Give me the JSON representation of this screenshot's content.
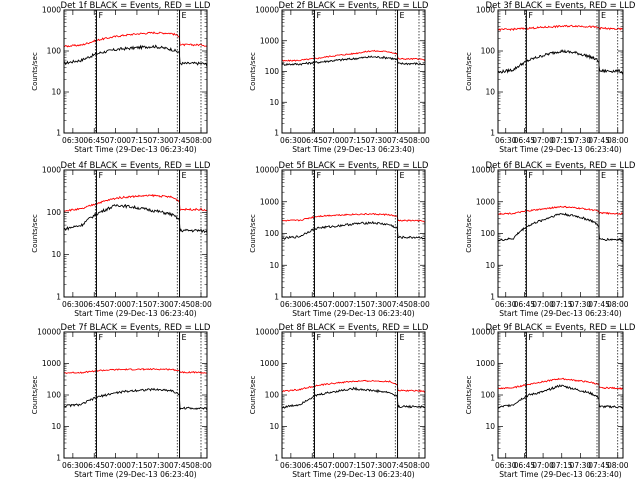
{
  "chart_data": [
    {
      "type": "line",
      "title": "Det 1f BLACK = Events, RED = LLD",
      "xlabel": "Start Time (29-Dec-13 06:23:40)",
      "ylabel": "Counts/sec",
      "yscale": "log",
      "ylim": [
        1,
        1000
      ],
      "y_ticks": [
        "1",
        "10",
        "100",
        "1000"
      ],
      "x_ticks": [
        "06:30",
        "06:45",
        "07:00",
        "07:15",
        "07:30",
        "07:45",
        "08:00"
      ],
      "markers": [
        "F",
        "E"
      ],
      "series": [
        {
          "color": "#000000",
          "levels": [
            50,
            60,
            90,
            110,
            120,
            130,
            110,
            70,
            45
          ]
        },
        {
          "color": "#ff0000",
          "levels": [
            130,
            140,
            190,
            230,
            260,
            280,
            270,
            180,
            130
          ]
        }
      ]
    },
    {
      "type": "line",
      "title": "Det 2f BLACK = Events, RED = LLD",
      "xlabel": "Start Time (29-Dec-13 06:23:40)",
      "ylabel": "Counts/sec",
      "yscale": "log",
      "ylim": [
        1,
        10000
      ],
      "y_ticks": [
        "1",
        "10",
        "100",
        "1000",
        "10000"
      ],
      "x_ticks": [
        "06:30",
        "06:45",
        "07:00",
        "07:15",
        "07:30",
        "07:45",
        "08:00"
      ],
      "markers": [
        "F",
        "E"
      ],
      "series": [
        {
          "color": "#000000",
          "levels": [
            170,
            175,
            200,
            230,
            260,
            300,
            280,
            190,
            170
          ]
        },
        {
          "color": "#ff0000",
          "levels": [
            220,
            230,
            270,
            330,
            380,
            470,
            440,
            280,
            240
          ]
        }
      ]
    },
    {
      "type": "line",
      "title": "Det 3f BLACK = Events, RED = LLD",
      "xlabel": "Start Time (29-Dec-13 06:23:40)",
      "ylabel": "Counts/sec",
      "yscale": "log",
      "ylim": [
        1,
        1000
      ],
      "y_ticks": [
        "1",
        "10",
        "100",
        "1000"
      ],
      "x_ticks": [
        "06:30",
        "06:45",
        "07:00",
        "07:15",
        "07:30",
        "07:45",
        "08:00"
      ],
      "markers": [
        "F",
        "E"
      ],
      "series": [
        {
          "color": "#000000",
          "levels": [
            30,
            35,
            60,
            80,
            100,
            90,
            70,
            40,
            30
          ]
        },
        {
          "color": "#ff0000",
          "levels": [
            330,
            340,
            360,
            380,
            400,
            410,
            390,
            350,
            340
          ]
        }
      ]
    },
    {
      "type": "line",
      "title": "Det 4f BLACK = Events, RED = LLD",
      "xlabel": "Start Time (29-Dec-13 06:23:40)",
      "ylabel": "Counts/sec",
      "yscale": "log",
      "ylim": [
        1,
        1000
      ],
      "y_ticks": [
        "1",
        "10",
        "100",
        "1000"
      ],
      "x_ticks": [
        "06:30",
        "06:45",
        "07:00",
        "07:15",
        "07:30",
        "07:45",
        "08:00"
      ],
      "markers": [
        "F",
        "E"
      ],
      "series": [
        {
          "color": "#000000",
          "levels": [
            40,
            50,
            100,
            150,
            130,
            110,
            90,
            40,
            35
          ]
        },
        {
          "color": "#ff0000",
          "levels": [
            110,
            120,
            170,
            220,
            240,
            250,
            230,
            130,
            110
          ]
        }
      ]
    },
    {
      "type": "line",
      "title": "Det 5f BLACK = Events, RED = LLD",
      "xlabel": "Start Time (29-Dec-13 06:23:40)",
      "ylabel": "Counts/sec",
      "yscale": "log",
      "ylim": [
        1,
        10000
      ],
      "y_ticks": [
        "1",
        "10",
        "100",
        "1000",
        "10000"
      ],
      "x_ticks": [
        "06:30",
        "06:45",
        "07:00",
        "07:15",
        "07:30",
        "07:45",
        "08:00"
      ],
      "markers": [
        "F",
        "E"
      ],
      "series": [
        {
          "color": "#000000",
          "levels": [
            70,
            80,
            150,
            170,
            200,
            220,
            190,
            90,
            70
          ]
        },
        {
          "color": "#ff0000",
          "levels": [
            250,
            260,
            350,
            380,
            400,
            410,
            390,
            270,
            240
          ]
        }
      ]
    },
    {
      "type": "line",
      "title": "Det 6f BLACK = Events, RED = LLD",
      "xlabel": "Start Time (29-Dec-13 06:23:40)",
      "ylabel": "Counts/sec",
      "yscale": "log",
      "ylim": [
        1,
        10000
      ],
      "y_ticks": [
        "1",
        "10",
        "100",
        "1000",
        "10000"
      ],
      "x_ticks": [
        "06:30",
        "06:45",
        "07:00",
        "07:15",
        "07:30",
        "07:45",
        "08:00"
      ],
      "markers": [
        "F",
        "E"
      ],
      "series": [
        {
          "color": "#000000",
          "levels": [
            60,
            70,
            180,
            280,
            420,
            350,
            250,
            80,
            60
          ]
        },
        {
          "color": "#ff0000",
          "levels": [
            420,
            430,
            520,
            600,
            700,
            640,
            560,
            430,
            420
          ]
        }
      ]
    },
    {
      "type": "line",
      "title": "Det 7f BLACK = Events, RED = LLD",
      "xlabel": "Start Time (29-Dec-13 06:23:40)",
      "ylabel": "Counts/sec",
      "yscale": "log",
      "ylim": [
        1,
        10000
      ],
      "y_ticks": [
        "1",
        "10",
        "100",
        "1000",
        "10000"
      ],
      "x_ticks": [
        "06:30",
        "06:45",
        "07:00",
        "07:15",
        "07:30",
        "07:45",
        "08:00"
      ],
      "markers": [
        "F",
        "E"
      ],
      "series": [
        {
          "color": "#000000",
          "levels": [
            45,
            50,
            90,
            120,
            140,
            150,
            140,
            50,
            35
          ]
        },
        {
          "color": "#ff0000",
          "levels": [
            500,
            520,
            600,
            640,
            650,
            660,
            650,
            540,
            500
          ]
        }
      ]
    },
    {
      "type": "line",
      "title": "Det 8f BLACK = Events, RED = LLD",
      "xlabel": "Start Time (29-Dec-13 06:23:40)",
      "ylabel": "Counts/sec",
      "yscale": "log",
      "ylim": [
        1,
        10000
      ],
      "y_ticks": [
        "1",
        "10",
        "100",
        "1000",
        "10000"
      ],
      "x_ticks": [
        "06:30",
        "06:45",
        "07:00",
        "07:15",
        "07:30",
        "07:45",
        "08:00"
      ],
      "markers": [
        "F",
        "E"
      ],
      "series": [
        {
          "color": "#000000",
          "levels": [
            40,
            50,
            100,
            130,
            160,
            140,
            120,
            50,
            40
          ]
        },
        {
          "color": "#ff0000",
          "levels": [
            130,
            150,
            200,
            240,
            270,
            280,
            270,
            150,
            130
          ]
        }
      ]
    },
    {
      "type": "line",
      "title": "Det 9f BLACK = Events, RED = LLD",
      "xlabel": "Start Time (29-Dec-13 06:23:40)",
      "ylabel": "Counts/sec",
      "yscale": "log",
      "ylim": [
        1,
        10000
      ],
      "y_ticks": [
        "1",
        "10",
        "100",
        "1000",
        "10000"
      ],
      "x_ticks": [
        "06:30",
        "06:45",
        "07:00",
        "07:15",
        "07:30",
        "07:45",
        "08:00"
      ],
      "markers": [
        "F",
        "E"
      ],
      "series": [
        {
          "color": "#000000",
          "levels": [
            40,
            50,
            100,
            130,
            200,
            150,
            110,
            45,
            40
          ]
        },
        {
          "color": "#ff0000",
          "levels": [
            160,
            170,
            220,
            270,
            330,
            290,
            250,
            170,
            160
          ]
        }
      ]
    }
  ]
}
